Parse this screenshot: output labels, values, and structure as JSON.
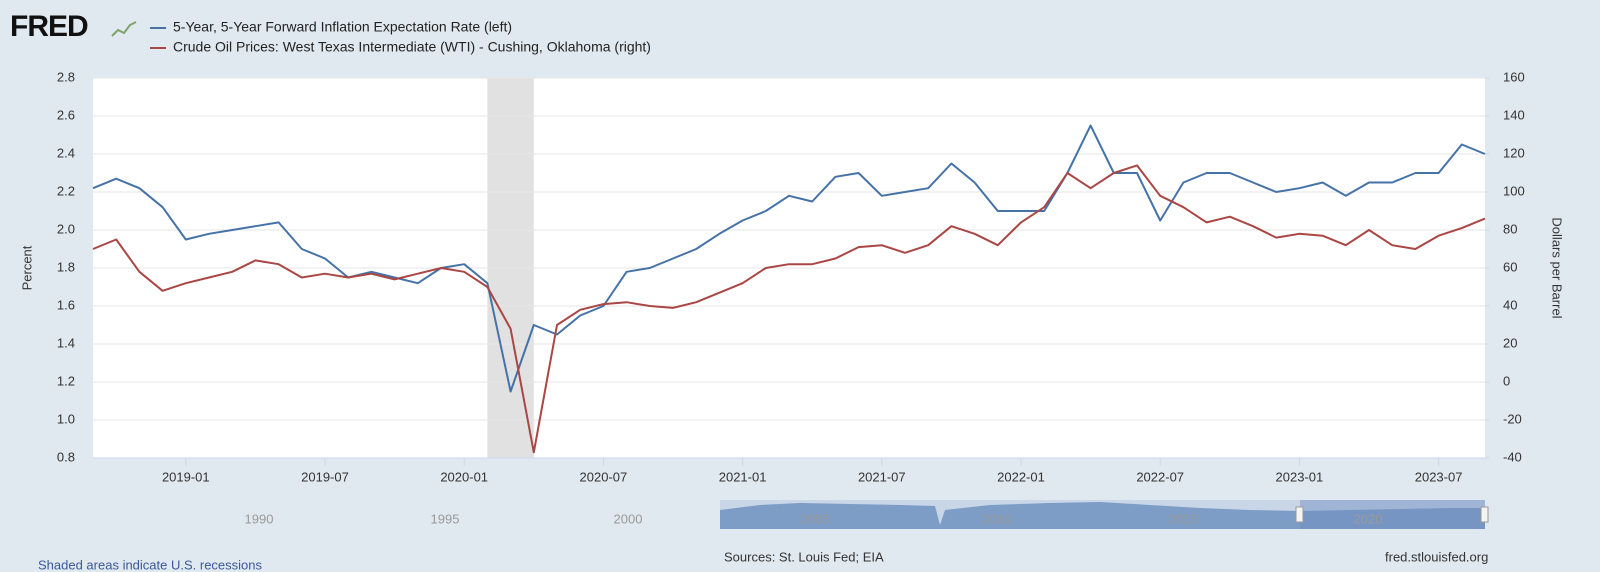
{
  "logo": "FRED",
  "chart_data": {
    "type": "line",
    "x": [
      "2018-09",
      "2018-10",
      "2018-11",
      "2018-12",
      "2019-01",
      "2019-02",
      "2019-03",
      "2019-04",
      "2019-05",
      "2019-06",
      "2019-07",
      "2019-08",
      "2019-09",
      "2019-10",
      "2019-11",
      "2019-12",
      "2020-01",
      "2020-02",
      "2020-03",
      "2020-04",
      "2020-05",
      "2020-06",
      "2020-07",
      "2020-08",
      "2020-09",
      "2020-10",
      "2020-11",
      "2020-12",
      "2021-01",
      "2021-02",
      "2021-03",
      "2021-04",
      "2021-05",
      "2021-06",
      "2021-07",
      "2021-08",
      "2021-09",
      "2021-10",
      "2021-11",
      "2021-12",
      "2022-01",
      "2022-02",
      "2022-03",
      "2022-04",
      "2022-05",
      "2022-06",
      "2022-07",
      "2022-08",
      "2022-09",
      "2022-10",
      "2022-11",
      "2022-12",
      "2023-01",
      "2023-02",
      "2023-03",
      "2023-04",
      "2023-05",
      "2023-06",
      "2023-07",
      "2023-08",
      "2023-09"
    ],
    "series": [
      {
        "name": "5-Year, 5-Year Forward Inflation Expectation Rate (left)",
        "color": "#4572a7",
        "axis": "y",
        "values": [
          2.22,
          2.27,
          2.22,
          2.12,
          1.95,
          1.98,
          2.0,
          2.02,
          2.04,
          1.9,
          1.85,
          1.75,
          1.78,
          1.75,
          1.72,
          1.8,
          1.82,
          1.72,
          1.15,
          1.5,
          1.45,
          1.55,
          1.6,
          1.78,
          1.8,
          1.85,
          1.9,
          1.98,
          2.05,
          2.1,
          2.18,
          2.15,
          2.28,
          2.3,
          2.18,
          2.2,
          2.22,
          2.35,
          2.25,
          2.1,
          2.1,
          2.1,
          2.3,
          2.55,
          2.3,
          2.3,
          2.05,
          2.25,
          2.3,
          2.3,
          2.25,
          2.2,
          2.22,
          2.25,
          2.18,
          2.25,
          2.25,
          2.3,
          2.3,
          2.45,
          2.4
        ]
      },
      {
        "name": "Crude Oil Prices: West Texas Intermediate (WTI) - Cushing, Oklahoma (right)",
        "color": "#aa4643",
        "axis": "y2",
        "values": [
          70,
          75,
          58,
          48,
          52,
          55,
          58,
          64,
          62,
          55,
          57,
          55,
          57,
          54,
          57,
          60,
          58,
          50,
          28,
          -37,
          30,
          38,
          41,
          42,
          40,
          39,
          42,
          47,
          52,
          60,
          62,
          62,
          65,
          71,
          72,
          68,
          72,
          82,
          78,
          72,
          84,
          92,
          110,
          102,
          110,
          114,
          98,
          92,
          84,
          87,
          82,
          76,
          78,
          77,
          72,
          80,
          72,
          70,
          77,
          81,
          86
        ]
      }
    ],
    "xlim": [
      "2018-09",
      "2023-09"
    ],
    "xticks": [
      "2019-01",
      "2019-07",
      "2020-01",
      "2020-07",
      "2021-01",
      "2021-07",
      "2022-01",
      "2022-07",
      "2023-01",
      "2023-07"
    ],
    "ylabel": "Percent",
    "ylim": [
      0.8,
      2.8
    ],
    "yticks": [
      0.8,
      {
        "value": 1,
        "label": "1.0"
      },
      1.2,
      1.4,
      1.6,
      1.8,
      {
        "value": 2,
        "label": "2.0"
      },
      2.2,
      2.4,
      2.6,
      2.8
    ],
    "y2label": "Dollars per Barrel",
    "y2lim": [
      -40,
      160
    ],
    "y2ticks": [
      -40,
      -20,
      0,
      20,
      40,
      60,
      80,
      100,
      120,
      140,
      160
    ],
    "grid": true,
    "recessions": [
      {
        "start": "2020-02",
        "end": "2020-04"
      }
    ]
  },
  "navigator": {
    "labels": [
      "1990",
      "1995",
      "2000",
      "2005",
      "2010",
      "2015",
      "2020"
    ]
  },
  "footer": {
    "note": "Shaded areas indicate U.S. recessions",
    "sources": "Sources: St. Louis Fed; EIA",
    "site": "fred.stlouisfed.org"
  }
}
